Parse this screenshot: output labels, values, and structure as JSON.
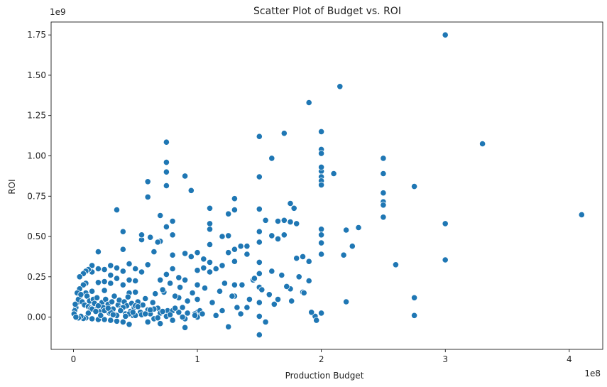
{
  "chart_data": {
    "type": "scatter",
    "title": "Scatter Plot of Budget vs. ROI",
    "xlabel": "Production Budget",
    "ylabel": "ROI",
    "x_exponent_label": "1e8",
    "y_exponent_label": "1e9",
    "xlim": [
      -18000000,
      427000000
    ],
    "ylim": [
      -200000000,
      1830000000
    ],
    "x_ticks": [
      0,
      100000000,
      200000000,
      300000000,
      400000000
    ],
    "x_tick_labels": [
      "0",
      "1",
      "2",
      "3",
      "4"
    ],
    "y_ticks": [
      0,
      250000000,
      500000000,
      750000000,
      1000000000,
      1250000000,
      1500000000,
      1750000000
    ],
    "y_tick_labels": [
      "0.00",
      "0.25",
      "0.50",
      "0.75",
      "1.00",
      "1.25",
      "1.50",
      "1.75"
    ],
    "grid": false,
    "marker_color": "#1f77b4",
    "marker_edge_color": "#ffffff",
    "series": [
      {
        "x": [
          300000000,
          215000000,
          190000000,
          330000000,
          410000000,
          200000000,
          170000000,
          150000000,
          250000000,
          275000000,
          300000000,
          300000000,
          260000000,
          275000000,
          275000000,
          210000000,
          220000000,
          230000000,
          225000000,
          218000000,
          220000000,
          250000000,
          250000000,
          250000000,
          250000000,
          250000000,
          200000000,
          200000000,
          200000000,
          200000000,
          200000000,
          200000000,
          200000000,
          200000000,
          200000000,
          200000000,
          200000000,
          195000000,
          200000000,
          178000000,
          160000000,
          175000000,
          175000000,
          150000000,
          150000000,
          180000000,
          170000000,
          165000000,
          160000000,
          185000000,
          185000000,
          190000000,
          190000000,
          180000000,
          175000000,
          170000000,
          165000000,
          160000000,
          155000000,
          150000000,
          150000000,
          150000000,
          150000000,
          150000000,
          150000000,
          150000000,
          150000000,
          145000000,
          140000000,
          140000000,
          135000000,
          130000000,
          130000000,
          130000000,
          130000000,
          130000000,
          130000000,
          125000000,
          125000000,
          125000000,
          125000000,
          120000000,
          120000000,
          115000000,
          110000000,
          110000000,
          110000000,
          110000000,
          110000000,
          110000000,
          105000000,
          105000000,
          100000000,
          100000000,
          100000000,
          100000000,
          100000000,
          95000000,
          95000000,
          90000000,
          90000000,
          90000000,
          90000000,
          85000000,
          85000000,
          80000000,
          80000000,
          80000000,
          80000000,
          78000000,
          75000000,
          75000000,
          75000000,
          75000000,
          75000000,
          75000000,
          73000000,
          70000000,
          70000000,
          70000000,
          68000000,
          65000000,
          62000000,
          60000000,
          60000000,
          60000000,
          55000000,
          55000000,
          55000000,
          50000000,
          50000000,
          50000000,
          45000000,
          45000000,
          45000000,
          40000000,
          40000000,
          40000000,
          40000000,
          35000000,
          35000000,
          35000000,
          30000000,
          30000000,
          30000000,
          25000000,
          25000000,
          25000000,
          20000000,
          20000000,
          20000000,
          15000000,
          15000000,
          15000000,
          12000000,
          10000000,
          10000000,
          10000000,
          8000000,
          8000000,
          5000000,
          5000000,
          5000000,
          3000000,
          3000000,
          2000000,
          1000000,
          500000,
          1500000,
          4000000,
          6000000,
          7000000,
          9000000,
          11000000,
          12000000,
          13000000,
          14000000,
          16000000,
          17000000,
          18000000,
          19000000,
          21000000,
          22000000,
          23000000,
          24000000,
          26000000,
          27000000,
          28000000,
          29000000,
          31000000,
          32000000,
          33000000,
          34000000,
          36000000,
          37000000,
          38000000,
          39000000,
          41000000,
          42000000,
          43000000,
          44000000,
          46000000,
          47000000,
          48000000,
          49000000,
          52000000,
          54000000,
          56000000,
          58000000,
          62000000,
          64000000,
          66000000,
          68000000,
          72000000,
          76000000,
          82000000,
          86000000,
          88000000,
          92000000,
          96000000,
          98000000,
          102000000,
          106000000,
          112000000,
          118000000,
          122000000,
          128000000,
          132000000,
          136000000,
          142000000,
          146000000,
          152000000,
          158000000,
          162000000,
          168000000,
          172000000,
          176000000,
          182000000,
          186000000,
          192000000,
          196000000,
          155000000,
          165000000,
          140000000,
          135000000,
          120000000,
          115000000,
          100000000,
          90000000,
          85000000,
          80000000,
          70000000,
          65000000,
          60000000,
          50000000,
          45000000,
          40000000,
          35000000,
          30000000,
          25000000,
          20000000,
          15000000,
          10000000,
          8000000,
          6000000,
          4000000,
          2000000,
          30000000,
          35000000,
          40000000,
          45000000,
          50000000,
          55000000,
          60000000,
          65000000,
          70000000,
          75000000,
          80000000,
          20000000,
          25000000,
          15000000,
          12000000,
          18000000,
          22000000,
          28000000,
          32000000,
          38000000,
          42000000,
          48000000,
          52000000,
          58000000,
          62000000,
          68000000,
          72000000,
          78000000,
          82000000,
          88000000,
          92000000,
          98000000,
          104000000
        ],
        "y": [
          1750000000,
          1430000000,
          1330000000,
          1075000000,
          635000000,
          1150000000,
          1140000000,
          1120000000,
          985000000,
          810000000,
          580000000,
          355000000,
          325000000,
          120000000,
          10000000,
          890000000,
          540000000,
          555000000,
          440000000,
          385000000,
          95000000,
          890000000,
          770000000,
          715000000,
          695000000,
          620000000,
          1040000000,
          1015000000,
          905000000,
          870000000,
          845000000,
          820000000,
          545000000,
          510000000,
          460000000,
          390000000,
          25000000,
          5000000,
          930000000,
          675000000,
          985000000,
          705000000,
          590000000,
          870000000,
          670000000,
          580000000,
          510000000,
          595000000,
          505000000,
          375000000,
          155000000,
          345000000,
          225000000,
          365000000,
          175000000,
          600000000,
          485000000,
          285000000,
          600000000,
          530000000,
          465000000,
          340000000,
          270000000,
          185000000,
          90000000,
          5000000,
          -110000000,
          230000000,
          440000000,
          390000000,
          440000000,
          735000000,
          665000000,
          420000000,
          345000000,
          200000000,
          130000000,
          640000000,
          505000000,
          400000000,
          -60000000,
          500000000,
          320000000,
          300000000,
          675000000,
          580000000,
          545000000,
          450000000,
          340000000,
          280000000,
          360000000,
          305000000,
          400000000,
          290000000,
          200000000,
          110000000,
          30000000,
          785000000,
          375000000,
          875000000,
          395000000,
          230000000,
          -65000000,
          245000000,
          120000000,
          595000000,
          510000000,
          385000000,
          300000000,
          210000000,
          1085000000,
          960000000,
          900000000,
          815000000,
          560000000,
          265000000,
          155000000,
          630000000,
          470000000,
          230000000,
          465000000,
          405000000,
          495000000,
          840000000,
          745000000,
          325000000,
          480000000,
          510000000,
          280000000,
          300000000,
          225000000,
          155000000,
          330000000,
          230000000,
          150000000,
          530000000,
          420000000,
          285000000,
          200000000,
          665000000,
          305000000,
          240000000,
          320000000,
          260000000,
          210000000,
          295000000,
          220000000,
          165000000,
          405000000,
          300000000,
          215000000,
          320000000,
          280000000,
          160000000,
          295000000,
          285000000,
          210000000,
          150000000,
          270000000,
          200000000,
          250000000,
          175000000,
          120000000,
          150000000,
          90000000,
          60000000,
          40000000,
          20000000,
          80000000,
          110000000,
          140000000,
          95000000,
          75000000,
          130000000,
          65000000,
          100000000,
          55000000,
          110000000,
          85000000,
          45000000,
          120000000,
          70000000,
          35000000,
          90000000,
          60000000,
          110000000,
          45000000,
          80000000,
          25000000,
          95000000,
          50000000,
          130000000,
          15000000,
          75000000,
          105000000,
          40000000,
          60000000,
          95000000,
          20000000,
          70000000,
          125000000,
          35000000,
          85000000,
          10000000,
          60000000,
          95000000,
          30000000,
          75000000,
          115000000,
          20000000,
          90000000,
          145000000,
          55000000,
          170000000,
          40000000,
          130000000,
          185000000,
          60000000,
          100000000,
          150000000,
          20000000,
          40000000,
          180000000,
          90000000,
          160000000,
          210000000,
          130000000,
          60000000,
          200000000,
          110000000,
          240000000,
          170000000,
          140000000,
          80000000,
          260000000,
          190000000,
          100000000,
          250000000,
          150000000,
          30000000,
          -20000000,
          -30000000,
          110000000,
          60000000,
          20000000,
          40000000,
          10000000,
          0,
          -10000000,
          30000000,
          -20000000,
          -40000000,
          50000000,
          -30000000,
          10000000,
          -45000000,
          -30000000,
          -25000000,
          -20000000,
          -15000000,
          -15000000,
          -10000000,
          -5000000,
          -8000000,
          5000000,
          -5000000,
          0,
          30000000,
          10000000,
          60000000,
          20000000,
          70000000,
          15000000,
          45000000,
          -10000000,
          25000000,
          5000000,
          40000000,
          70000000,
          40000000,
          50000000,
          25000000,
          35000000,
          10000000,
          55000000,
          15000000,
          40000000,
          5000000,
          30000000,
          65000000,
          20000000,
          45000000,
          -5000000,
          35000000,
          15000000,
          55000000,
          0,
          25000000,
          10000000,
          20000000
        ]
      }
    ]
  }
}
